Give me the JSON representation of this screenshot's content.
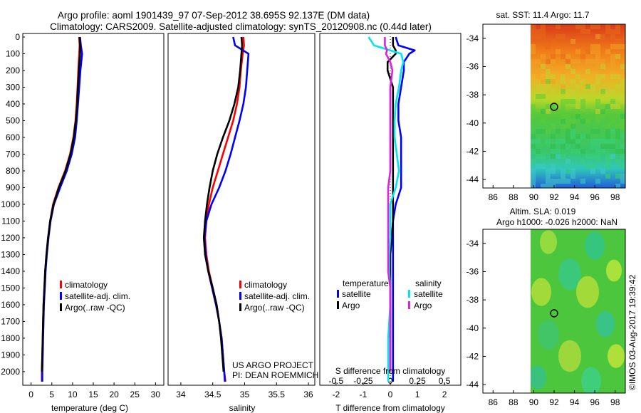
{
  "title": {
    "line1": "Argo profile: aoml 1901439_97 07-Sep-2012 38.695S 92.137E (DM data)",
    "line2": "Climatology: CARS2009. Satellite-adjusted climatology: synTS_20120908.nc (0.44d later)"
  },
  "colors": {
    "climatology": "#ff0000",
    "satellite": "#0000ff",
    "argo": "#000000",
    "sat_diff_salinity": "#00e5ee",
    "argo_diff_salinity": "#e020e0"
  },
  "depth_ticks": [
    "0",
    "100",
    "200",
    "300",
    "400",
    "500",
    "600",
    "700",
    "800",
    "900",
    "1000",
    "1100",
    "1200",
    "1300",
    "1400",
    "1500",
    "1600",
    "1700",
    "1800",
    "1900",
    "2000"
  ],
  "chart_data": [
    {
      "type": "line",
      "name": "temperature",
      "xlabel": "temperature (deg C)",
      "ylabel": "",
      "xlim": [
        -2,
        32
      ],
      "ylim": [
        2060,
        0
      ],
      "xticks": [
        "0",
        "5",
        "10",
        "15",
        "20",
        "25",
        "30"
      ],
      "legend": [
        "climatology",
        "satellite-adj. clim.",
        "Argo(..raw -QC)"
      ],
      "depth": [
        0,
        50,
        100,
        200,
        300,
        400,
        500,
        600,
        700,
        800,
        900,
        1000,
        1100,
        1200,
        1300,
        1400,
        1500,
        1600,
        1700,
        1800,
        1900,
        2000,
        2060
      ],
      "series": [
        {
          "name": "climatology",
          "values": [
            11.6,
            11.7,
            11.6,
            11.4,
            11.2,
            11.0,
            10.7,
            10.2,
            9.4,
            8.2,
            6.6,
            5.3,
            4.6,
            4.1,
            3.7,
            3.4,
            3.2,
            3.0,
            2.9,
            2.8,
            2.7,
            2.6,
            2.6
          ]
        },
        {
          "name": "satellite-adj. clim.",
          "values": [
            11.8,
            12.0,
            12.3,
            11.9,
            11.6,
            11.3,
            11.0,
            10.6,
            9.8,
            8.6,
            7.0,
            5.5,
            4.7,
            4.2,
            3.8,
            3.5,
            3.3,
            3.1,
            3.0,
            2.9,
            2.8,
            2.7,
            2.7
          ]
        },
        {
          "name": "Argo(..raw -QC)",
          "values": [
            11.7,
            11.8,
            11.8,
            11.5,
            11.3,
            11.1,
            10.8,
            10.3,
            9.5,
            8.3,
            6.7,
            5.4,
            4.6,
            4.1,
            3.7,
            3.4,
            3.2,
            3.0,
            2.9,
            2.8,
            2.7,
            2.6,
            null
          ]
        }
      ]
    },
    {
      "type": "line",
      "name": "salinity",
      "xlabel": "salinity",
      "ylabel": "",
      "xlim": [
        33.8,
        36.1
      ],
      "ylim": [
        2060,
        0
      ],
      "xticks": [
        "34",
        "34.5",
        "35",
        "35.5",
        "36"
      ],
      "legend": [
        "climatology",
        "satellite-adj. clim.",
        "Argo(..raw -QC)"
      ],
      "depth": [
        0,
        50,
        100,
        200,
        300,
        400,
        500,
        600,
        700,
        800,
        900,
        1000,
        1100,
        1200,
        1300,
        1400,
        1500,
        1600,
        1700,
        1800,
        1900,
        2000,
        2060
      ],
      "series": [
        {
          "name": "climatology",
          "values": [
            34.98,
            34.99,
            34.97,
            34.94,
            34.92,
            34.88,
            34.82,
            34.74,
            34.66,
            34.58,
            34.5,
            34.44,
            34.4,
            34.38,
            34.4,
            34.44,
            34.5,
            34.56,
            34.6,
            34.64,
            34.66,
            34.68,
            34.7
          ]
        },
        {
          "name": "satellite-adj. clim.",
          "values": [
            34.82,
            34.85,
            35.06,
            35.04,
            35.02,
            34.98,
            34.92,
            34.85,
            34.78,
            34.7,
            34.6,
            34.48,
            34.4,
            34.37,
            34.39,
            34.43,
            34.49,
            34.55,
            34.6,
            34.64,
            34.66,
            34.68,
            34.69
          ]
        },
        {
          "name": "Argo(..raw -QC)",
          "values": [
            34.95,
            34.96,
            34.95,
            34.93,
            34.9,
            34.84,
            34.76,
            34.66,
            34.57,
            34.5,
            34.45,
            34.41,
            34.38,
            34.36,
            34.38,
            34.43,
            34.5,
            34.56,
            34.6,
            34.63,
            34.65,
            34.67,
            null
          ]
        }
      ],
      "annotation": [
        "US ARGO PROJECT",
        "PI: DEAN ROEMMICH"
      ]
    },
    {
      "type": "line",
      "name": "differences",
      "xlabel": "T difference from climatology",
      "xlabel2": "S difference from climatology",
      "xlim": [
        -2.6,
        2.6
      ],
      "ylim": [
        2060,
        0
      ],
      "xticks": [
        "-2",
        "-1",
        "0",
        "1",
        "2"
      ],
      "xticks_top": [
        "-0.5",
        "-0.25",
        "0",
        "0.25",
        "0.5"
      ],
      "legend_headers": [
        "temperature",
        "salinity"
      ],
      "legend": [
        "satellite",
        "Argo",
        "satellite",
        "Argo"
      ],
      "depth": [
        0,
        50,
        80,
        100,
        150,
        200,
        300,
        400,
        500,
        600,
        700,
        800,
        900,
        1000,
        1100,
        1200,
        1300,
        1400,
        1500,
        1600,
        1700,
        1800,
        1900,
        2000,
        2060
      ],
      "series": [
        {
          "name": "temperature satellite",
          "values": [
            0.2,
            0.3,
            0.9,
            0.7,
            0.5,
            0.5,
            0.4,
            0.3,
            0.3,
            0.4,
            0.4,
            0.4,
            0.4,
            0.2,
            0.1,
            0.1,
            0.1,
            0.1,
            0.1,
            0.1,
            0.1,
            0.1,
            0.1,
            0.1,
            0.1
          ]
        },
        {
          "name": "temperature Argo",
          "values": [
            0.1,
            0.1,
            0.2,
            0.2,
            -0.1,
            -0.1,
            0.1,
            0.1,
            0.1,
            0.1,
            0.1,
            0.1,
            0.1,
            0.1,
            0.1,
            0.05,
            0.0,
            0.0,
            0.0,
            0.0,
            0.0,
            0.0,
            0.0,
            0.0,
            null
          ]
        },
        {
          "name": "salinity satellite",
          "values": [
            -0.2,
            -0.15,
            0.0,
            0.1,
            0.12,
            0.1,
            0.08,
            0.05,
            0.04,
            0.04,
            0.06,
            0.08,
            0.05,
            0.0,
            0.0,
            0.0,
            -0.01,
            -0.01,
            0.0,
            0.0,
            -0.01,
            -0.02,
            -0.02,
            -0.02,
            -0.02
          ]
        },
        {
          "name": "salinity Argo",
          "values": [
            -0.05,
            -0.05,
            -0.03,
            -0.04,
            0.0,
            0.02,
            0.0,
            0.0,
            0.0,
            0.0,
            0.0,
            0.0,
            -0.02,
            -0.02,
            -0.02,
            -0.02,
            -0.02,
            -0.02,
            0.0,
            0.0,
            0.0,
            0.0,
            0.0,
            0.0,
            null
          ]
        }
      ]
    },
    {
      "type": "heatmap",
      "name": "sst-map",
      "title": "sat. SST: 11.4 Argo: 11.7",
      "xticks": [
        "86",
        "88",
        "90",
        "92",
        "94",
        "96",
        "98"
      ],
      "yticks": [
        "-34",
        "-36",
        "-38",
        "-40",
        "-42",
        "-44"
      ],
      "marker": {
        "lon": 92.137,
        "lat": -38.695
      }
    },
    {
      "type": "heatmap",
      "name": "sla-map",
      "title_line1": "Altim. SLA: 0.019",
      "title_line2": "Argo h1000: -0.026 h2000: NaN",
      "xticks": [
        "86",
        "88",
        "90",
        "92",
        "94",
        "96",
        "98"
      ],
      "yticks": [
        "-34",
        "-36",
        "-38",
        "-40",
        "-42",
        "-44"
      ],
      "marker": {
        "lon": 92.137,
        "lat": -38.695
      }
    }
  ],
  "watermark": "©IMOS 03-Aug-2017 19:39:42"
}
